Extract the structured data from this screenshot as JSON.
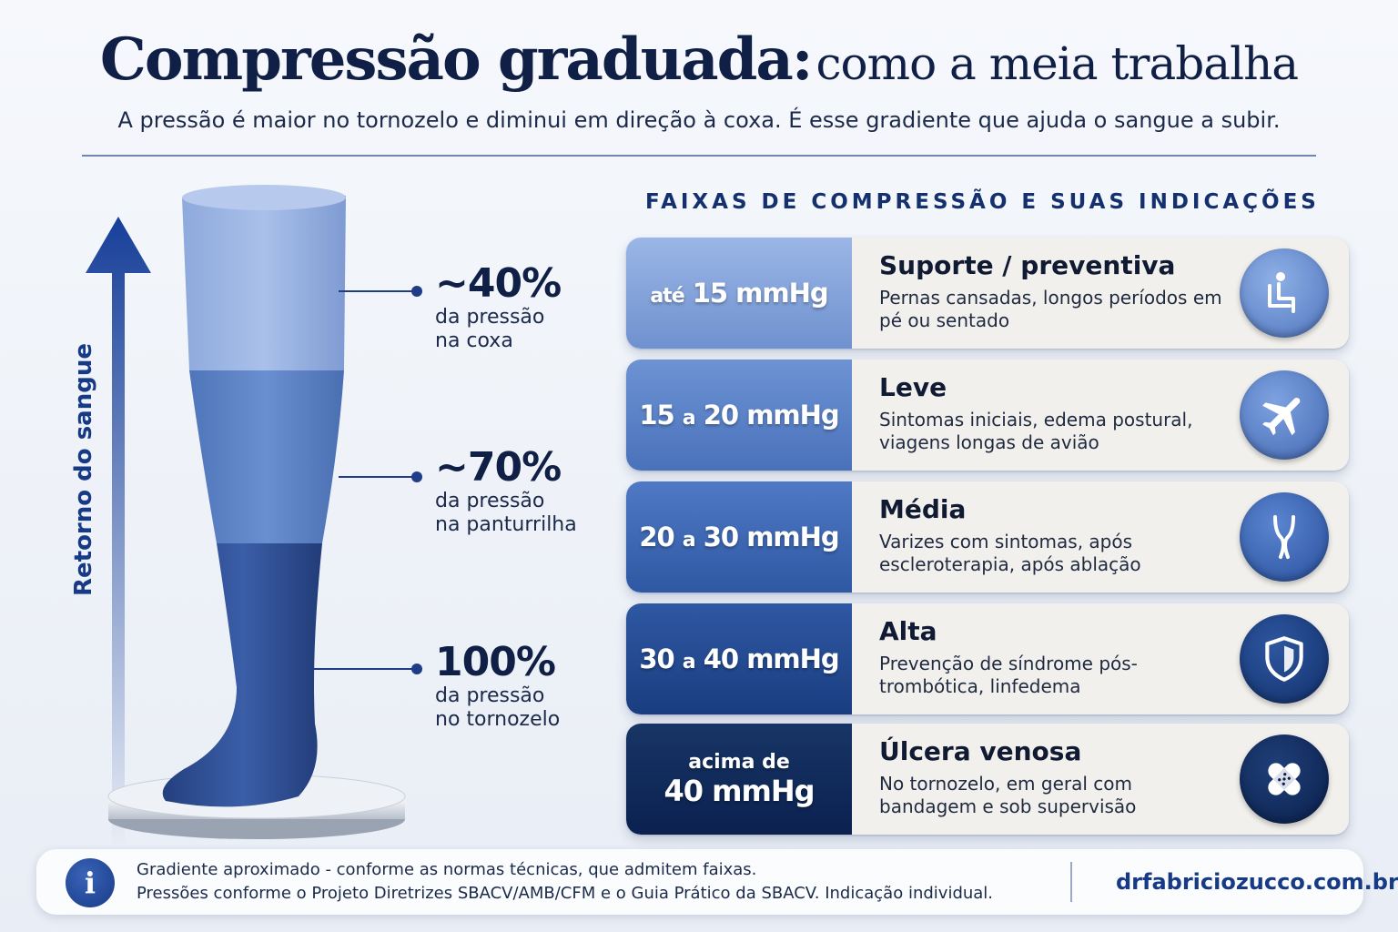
{
  "header": {
    "title_bold": "Compressão graduada:",
    "title_rest": "como a meia trabalha",
    "subtitle": "A pressão é maior no tornozelo e diminui em direção à coxa. É esse gradiente que ajuda o sangue a subir."
  },
  "flow": {
    "label": "Retorno do sangue"
  },
  "pressure_points": [
    {
      "value": "~40%",
      "line1": "da pressão",
      "line2": "na coxa"
    },
    {
      "value": "~70%",
      "line1": "da pressão",
      "line2": "na panturrilha"
    },
    {
      "value": "100%",
      "line1": "da pressão",
      "line2": "no tornozelo"
    }
  ],
  "section_title": "FAIXAS DE COMPRESSÃO E SUAS INDICAÇÕES",
  "bands": [
    {
      "range_a": "até",
      "range_b": "15 mmHg",
      "title": "Suporte / preventiva",
      "desc": "Pernas cansadas, longos períodos em pé ou sentado",
      "icon": "sitting-person-icon",
      "color": "#7f9fd6"
    },
    {
      "range_a": "15",
      "range_mid": "a",
      "range_b": "20 mmHg",
      "title": "Leve",
      "desc": "Sintomas iniciais, edema postural, viagens longas de avião",
      "icon": "airplane-icon",
      "color": "#5f85c8"
    },
    {
      "range_a": "20",
      "range_mid": "a",
      "range_b": "30 mmHg",
      "title": "Média",
      "desc": "Varizes com sintomas, após escleroterapia, após ablação",
      "icon": "veins-icon",
      "color": "#3c66b0"
    },
    {
      "range_a": "30",
      "range_mid": "a",
      "range_b": "40 mmHg",
      "title": "Alta",
      "desc": "Prevenção de síndrome pós-trombótica, linfedema",
      "icon": "shield-icon",
      "color": "#1f4488"
    },
    {
      "range_a": "acima de",
      "range_b": "40 mmHg",
      "title": "Úlcera venosa",
      "desc": "No tornozelo, em geral com bandagem e sob supervisão",
      "icon": "bandage-icon",
      "color": "#0f2a5c"
    }
  ],
  "footer": {
    "note1": "Gradiente aproximado - conforme as normas técnicas, que admitem faixas.",
    "note2": "Pressões conforme o Projeto Diretrizes SBACV/AMB/CFM e o Guia Prático da SBACV. Indicação individual.",
    "site": "drfabriciozucco.com.br",
    "info_icon": "info-icon"
  }
}
